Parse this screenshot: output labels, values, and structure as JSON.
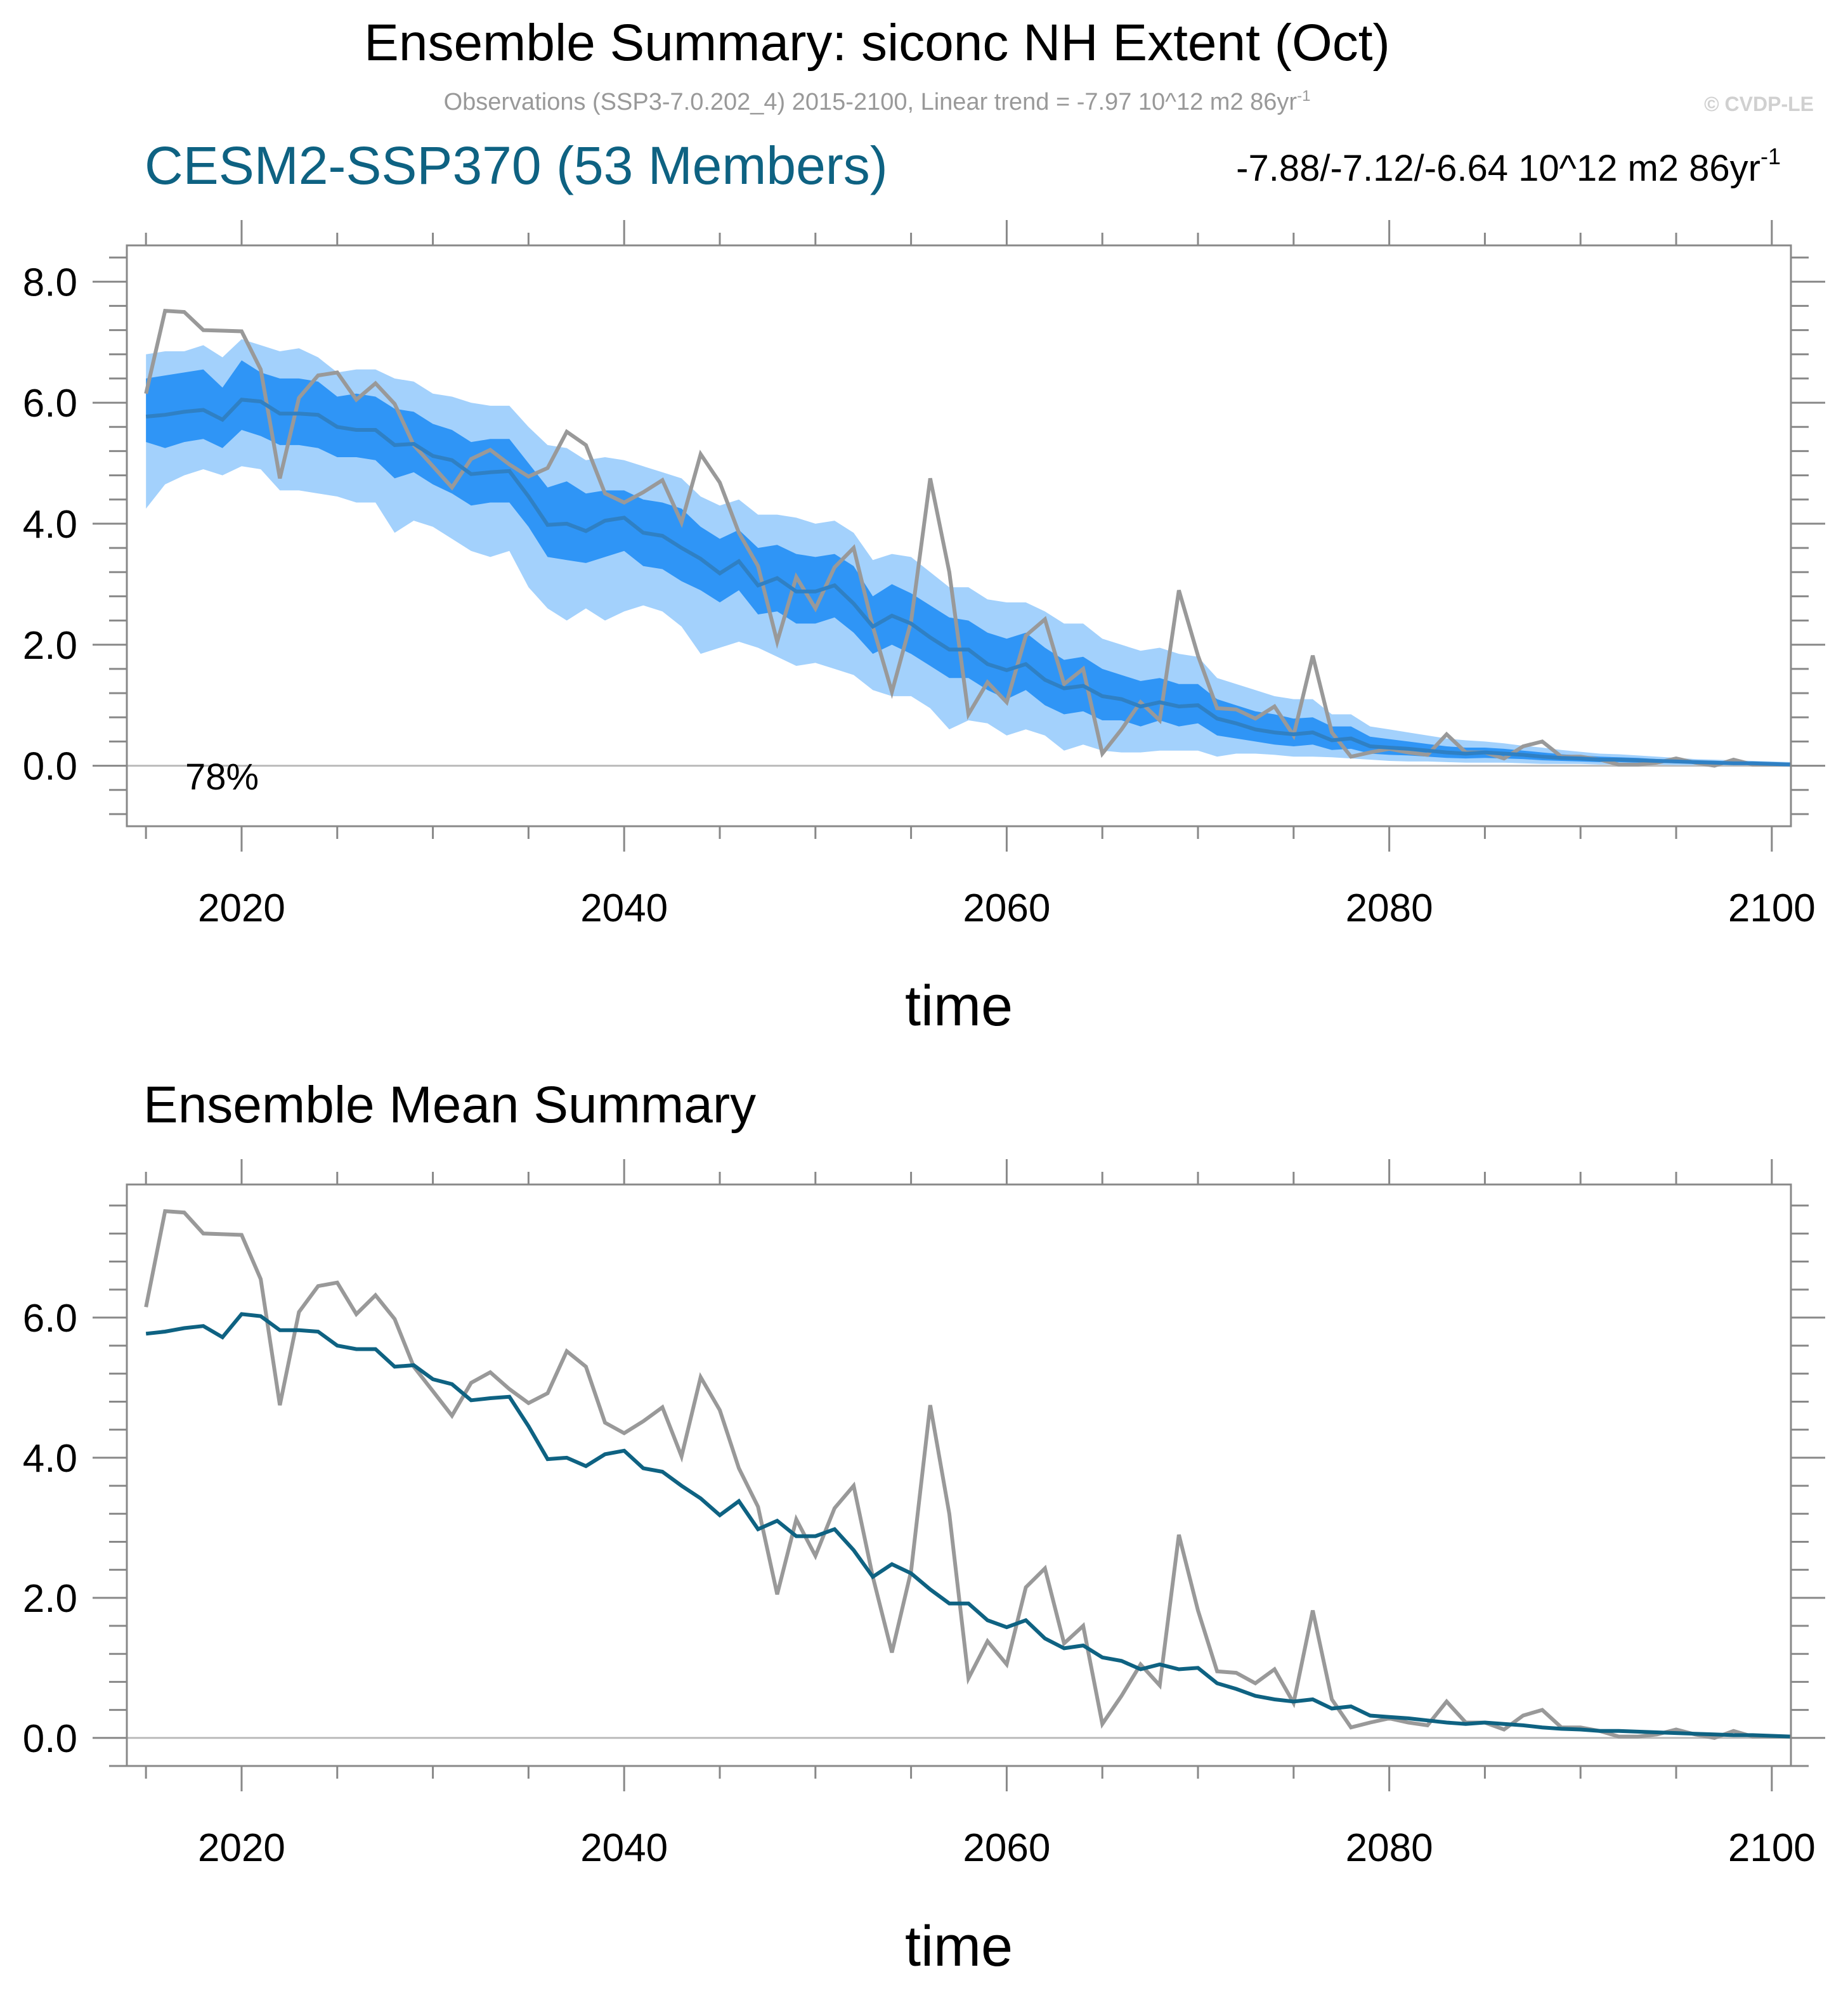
{
  "title": "Ensemble Summary: siconc NH Extent (Oct)",
  "subtitle": "Observations (SSP3-7.0.202_4) 2015-2100, Linear trend = -7.97 10^12 m2 86yr",
  "subtitle_sup": "-1",
  "copyright": "© CVDP-LE",
  "colors": {
    "model": "#0e6282",
    "observations": "#999999",
    "band_outer": "#a3d1fc",
    "band_inner": "#2f95f6",
    "ensemble_mean_top": "#2f80c4"
  },
  "chart_data": [
    {
      "type": "line",
      "panel_title": "CESM2-SSP370 (53 Members)",
      "trend_label": "-7.88/-7.12/-6.64 10^12 m2 86yr",
      "trend_sup": "-1",
      "percent_label": "78%",
      "xlabel": "time",
      "ylabel": "",
      "xlim": [
        2014,
        2101
      ],
      "ylim": [
        -1.0,
        8.6
      ],
      "x_ticks": [
        2020,
        2040,
        2060,
        2080,
        2100
      ],
      "y_ticks": [
        0.0,
        2.0,
        4.0,
        6.0,
        8.0
      ],
      "y_tick_labels": [
        "0.0",
        "2.0",
        "4.0",
        "6.0",
        "8.0"
      ],
      "x_start": 2015,
      "series": [
        {
          "name": "Observations",
          "role": "obs",
          "values": [
            6.15,
            7.52,
            7.5,
            7.2,
            7.19,
            7.18,
            6.55,
            4.75,
            6.08,
            6.45,
            6.5,
            6.05,
            6.32,
            5.98,
            5.3,
            4.95,
            4.6,
            5.07,
            5.22,
            4.98,
            4.78,
            4.92,
            5.52,
            5.3,
            4.5,
            4.35,
            4.52,
            4.72,
            4.02,
            5.15,
            4.68,
            3.85,
            3.3,
            2.05,
            3.12,
            2.6,
            3.28,
            3.6,
            2.3,
            1.22,
            2.38,
            4.75,
            3.2,
            0.85,
            1.38,
            1.05,
            2.15,
            2.42,
            1.35,
            1.6,
            0.2,
            0.6,
            1.05,
            0.75,
            2.9,
            1.82,
            0.95,
            0.93,
            0.78,
            0.98,
            0.5,
            1.82,
            0.55,
            0.15,
            0.22,
            0.28,
            0.22,
            0.18,
            0.52,
            0.22,
            0.22,
            0.12,
            0.32,
            0.4,
            0.15,
            0.15,
            0.1,
            0.02,
            0.02,
            0.05,
            0.12,
            0.05,
            0.0,
            0.1,
            0.02,
            0.02,
            0.02
          ]
        },
        {
          "name": "Ensemble mean",
          "role": "mean",
          "values": [
            5.77,
            5.8,
            5.85,
            5.88,
            5.72,
            6.05,
            6.02,
            5.82,
            5.82,
            5.8,
            5.6,
            5.55,
            5.55,
            5.3,
            5.32,
            5.12,
            5.05,
            4.82,
            4.85,
            4.87,
            4.45,
            3.98,
            4.0,
            3.88,
            4.05,
            4.1,
            3.85,
            3.8,
            3.6,
            3.42,
            3.18,
            3.38,
            2.98,
            3.1,
            2.88,
            2.88,
            2.98,
            2.68,
            2.3,
            2.48,
            2.35,
            2.12,
            1.92,
            1.92,
            1.68,
            1.58,
            1.68,
            1.42,
            1.28,
            1.32,
            1.15,
            1.1,
            0.98,
            1.05,
            0.98,
            1.0,
            0.78,
            0.7,
            0.6,
            0.55,
            0.52,
            0.55,
            0.42,
            0.45,
            0.32,
            0.3,
            0.28,
            0.25,
            0.22,
            0.2,
            0.22,
            0.2,
            0.18,
            0.15,
            0.13,
            0.12,
            0.1,
            0.1,
            0.09,
            0.08,
            0.07,
            0.06,
            0.05,
            0.04,
            0.04,
            0.03,
            0.02
          ]
        },
        {
          "name": "Inner range (25-75%)",
          "role": "band_inner",
          "upper": [
            6.4,
            6.45,
            6.5,
            6.55,
            6.25,
            6.7,
            6.5,
            6.4,
            6.4,
            6.35,
            6.1,
            6.15,
            6.1,
            5.9,
            5.85,
            5.65,
            5.55,
            5.35,
            5.4,
            5.4,
            5.0,
            4.6,
            4.7,
            4.5,
            4.55,
            4.55,
            4.4,
            4.35,
            4.25,
            3.95,
            3.75,
            3.9,
            3.6,
            3.65,
            3.5,
            3.45,
            3.5,
            3.3,
            2.8,
            3.0,
            2.85,
            2.65,
            2.45,
            2.4,
            2.2,
            2.1,
            2.2,
            1.95,
            1.75,
            1.8,
            1.6,
            1.5,
            1.4,
            1.45,
            1.35,
            1.35,
            1.1,
            1.0,
            0.9,
            0.85,
            0.78,
            0.8,
            0.65,
            0.65,
            0.48,
            0.44,
            0.4,
            0.36,
            0.32,
            0.3,
            0.3,
            0.28,
            0.25,
            0.22,
            0.19,
            0.17,
            0.15,
            0.14,
            0.13,
            0.11,
            0.1,
            0.08,
            0.07,
            0.06,
            0.06,
            0.05,
            0.04
          ],
          "lower": [
            5.35,
            5.25,
            5.35,
            5.4,
            5.25,
            5.55,
            5.45,
            5.3,
            5.3,
            5.25,
            5.1,
            5.1,
            5.05,
            4.75,
            4.85,
            4.65,
            4.5,
            4.3,
            4.35,
            4.35,
            3.95,
            3.45,
            3.4,
            3.35,
            3.45,
            3.55,
            3.3,
            3.25,
            3.05,
            2.9,
            2.7,
            2.9,
            2.5,
            2.55,
            2.35,
            2.35,
            2.45,
            2.2,
            1.85,
            2.0,
            1.85,
            1.65,
            1.45,
            1.45,
            1.25,
            1.1,
            1.25,
            1.0,
            0.85,
            0.9,
            0.75,
            0.75,
            0.65,
            0.75,
            0.65,
            0.7,
            0.5,
            0.45,
            0.4,
            0.35,
            0.32,
            0.35,
            0.26,
            0.28,
            0.2,
            0.18,
            0.17,
            0.15,
            0.13,
            0.12,
            0.13,
            0.12,
            0.11,
            0.09,
            0.08,
            0.07,
            0.06,
            0.06,
            0.05,
            0.05,
            0.04,
            0.04,
            0.03,
            0.02,
            0.02,
            0.02,
            0.01
          ]
        },
        {
          "name": "Outer range (10-90%)",
          "role": "band_outer",
          "upper": [
            6.8,
            6.85,
            6.85,
            6.95,
            6.75,
            7.05,
            6.95,
            6.85,
            6.9,
            6.75,
            6.5,
            6.55,
            6.55,
            6.4,
            6.35,
            6.15,
            6.1,
            6.0,
            5.95,
            5.95,
            5.6,
            5.3,
            5.25,
            5.05,
            5.1,
            5.05,
            4.95,
            4.85,
            4.75,
            4.45,
            4.3,
            4.4,
            4.15,
            4.15,
            4.1,
            4.0,
            4.05,
            3.85,
            3.4,
            3.5,
            3.45,
            3.2,
            2.95,
            2.95,
            2.75,
            2.7,
            2.7,
            2.55,
            2.35,
            2.35,
            2.1,
            2.0,
            1.9,
            1.95,
            1.85,
            1.8,
            1.45,
            1.35,
            1.25,
            1.15,
            1.1,
            1.1,
            0.85,
            0.85,
            0.65,
            0.6,
            0.55,
            0.5,
            0.45,
            0.42,
            0.4,
            0.37,
            0.33,
            0.3,
            0.26,
            0.23,
            0.2,
            0.19,
            0.17,
            0.15,
            0.13,
            0.11,
            0.1,
            0.09,
            0.08,
            0.07,
            0.06
          ],
          "lower": [
            4.25,
            4.65,
            4.8,
            4.9,
            4.8,
            4.95,
            4.9,
            4.55,
            4.55,
            4.5,
            4.45,
            4.35,
            4.35,
            3.85,
            4.05,
            3.95,
            3.75,
            3.55,
            3.45,
            3.55,
            2.95,
            2.6,
            2.4,
            2.6,
            2.4,
            2.55,
            2.65,
            2.55,
            2.3,
            1.85,
            1.95,
            2.05,
            1.95,
            1.8,
            1.65,
            1.7,
            1.6,
            1.5,
            1.25,
            1.15,
            1.15,
            0.95,
            0.6,
            0.75,
            0.7,
            0.5,
            0.6,
            0.5,
            0.25,
            0.35,
            0.25,
            0.22,
            0.22,
            0.25,
            0.25,
            0.25,
            0.15,
            0.2,
            0.2,
            0.18,
            0.15,
            0.15,
            0.14,
            0.12,
            0.1,
            0.08,
            0.07,
            0.07,
            0.06,
            0.05,
            0.05,
            0.05,
            0.04,
            0.03,
            0.03,
            0.03,
            0.02,
            0.02,
            0.02,
            0.02,
            0.01,
            0.01,
            0.01,
            0.01,
            0.01,
            0.0,
            0.0
          ]
        }
      ]
    },
    {
      "type": "line",
      "panel_title": "Ensemble Mean Summary",
      "xlabel": "time",
      "ylabel": "",
      "xlim": [
        2014,
        2101
      ],
      "ylim": [
        -0.4,
        7.9
      ],
      "x_ticks": [
        2020,
        2040,
        2060,
        2080,
        2100
      ],
      "y_ticks": [
        0.0,
        2.0,
        4.0,
        6.0
      ],
      "y_tick_labels": [
        "0.0",
        "2.0",
        "4.0",
        "6.0"
      ],
      "x_start": 2015,
      "series": [
        {
          "name": "Observations",
          "role": "obs",
          "ref": "same as panel 1 observations"
        },
        {
          "name": "Ensemble mean",
          "role": "mean",
          "ref": "same as panel 1 ensemble mean"
        }
      ]
    }
  ]
}
